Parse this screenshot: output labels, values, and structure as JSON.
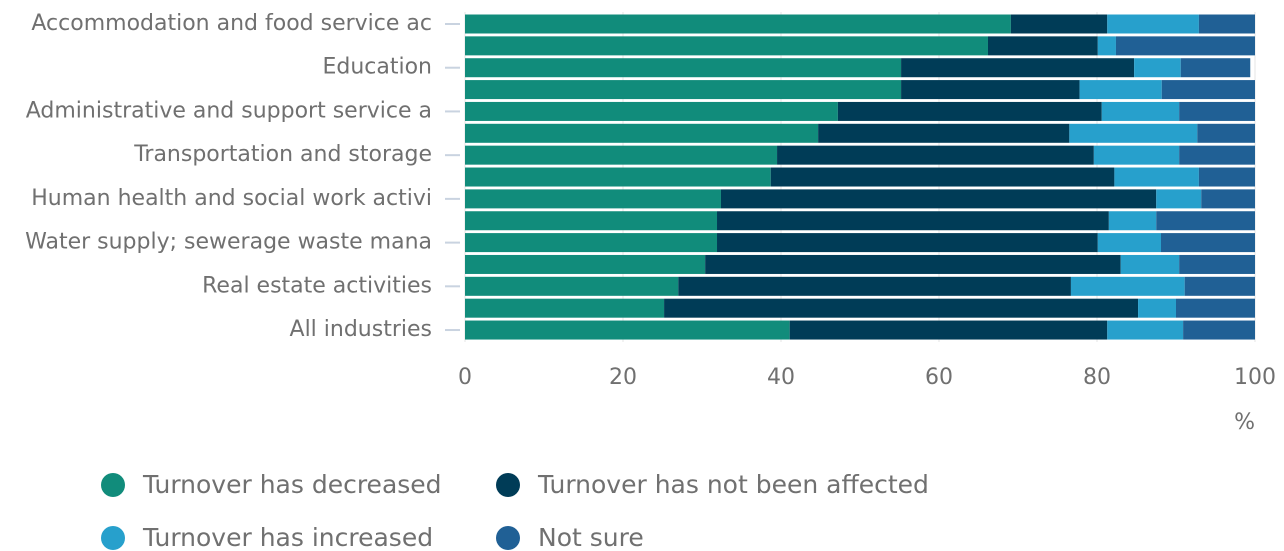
{
  "chart_data": {
    "type": "stacked_bar_horizontal",
    "categories": [
      "Accommodation and food service ac",
      null,
      "Education",
      null,
      "Administrative and support service a",
      null,
      "Transportation and storage",
      null,
      "Human health and social work activi",
      null,
      "Water supply; sewerage waste mana",
      null,
      "Real estate activities",
      null,
      "All industries"
    ],
    "series": [
      {
        "name": "Turnover has decreased",
        "color": "#118c7b",
        "values": [
          69.1,
          66.2,
          55.2,
          55.2,
          47.2,
          44.7,
          39.5,
          38.7,
          32.4,
          31.9,
          31.9,
          30.4,
          27.0,
          25.2,
          41.1
        ]
      },
      {
        "name": "Turnover has not been affected",
        "color": "#003c57",
        "values": [
          12.2,
          13.9,
          29.5,
          22.6,
          33.4,
          31.8,
          40.1,
          43.5,
          55.1,
          49.6,
          48.2,
          52.6,
          49.7,
          60.0,
          40.2
        ]
      },
      {
        "name": "Turnover has increased",
        "color": "#27a0cc",
        "values": [
          11.6,
          2.3,
          5.9,
          10.4,
          9.8,
          16.2,
          10.8,
          10.7,
          5.7,
          6.0,
          8.0,
          7.4,
          14.4,
          4.8,
          9.6
        ]
      },
      {
        "name": "Not sure",
        "color": "#206095",
        "values": [
          7.1,
          17.6,
          8.8,
          11.8,
          9.6,
          7.3,
          9.6,
          7.1,
          6.8,
          12.5,
          11.9,
          9.6,
          8.9,
          10.0,
          9.1
        ]
      }
    ],
    "x_label": "%",
    "xlim": [
      0,
      100
    ],
    "xticks": [
      0,
      20,
      40,
      60,
      80,
      100
    ],
    "grid": true
  }
}
